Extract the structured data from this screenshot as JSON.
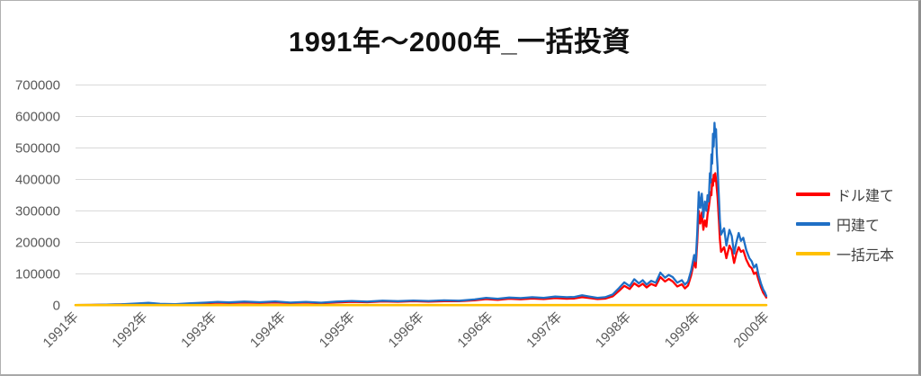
{
  "title": "1991年～2000年_一括投資",
  "chart_data": {
    "type": "line",
    "title": "1991年～2000年_一括投資",
    "xlabel": "",
    "ylabel": "",
    "xlim": [
      1991.5,
      2000.5
    ],
    "ylim": [
      0,
      700000
    ],
    "grid": "horizontal",
    "legend_position": "right",
    "yticks": [
      0,
      100000,
      200000,
      300000,
      400000,
      500000,
      600000,
      700000
    ],
    "xticks": {
      "positions": [
        1991.5,
        1992.4,
        1993.3,
        1994.2,
        1995.1,
        1996.0,
        1996.9,
        1997.8,
        1998.7,
        1999.6,
        2000.5
      ],
      "labels": [
        "1991年",
        "1992年",
        "1993年",
        "1994年",
        "1995年",
        "1996年",
        "1996年",
        "1997年",
        "1998年",
        "1999年",
        "2000年"
      ]
    },
    "x": [
      1991.5,
      1991.7,
      1991.9,
      1992.1,
      1992.3,
      1992.45,
      1992.6,
      1992.8,
      1993.0,
      1993.2,
      1993.35,
      1993.5,
      1993.7,
      1993.9,
      1994.1,
      1994.3,
      1994.5,
      1994.7,
      1994.9,
      1995.1,
      1995.3,
      1995.5,
      1995.7,
      1995.9,
      1996.1,
      1996.3,
      1996.5,
      1996.7,
      1996.85,
      1997.0,
      1997.15,
      1997.3,
      1997.45,
      1997.6,
      1997.75,
      1997.9,
      1998.0,
      1998.1,
      1998.2,
      1998.3,
      1998.4,
      1998.5,
      1998.58,
      1998.65,
      1998.72,
      1998.78,
      1998.84,
      1998.89,
      1998.94,
      1999.0,
      1999.06,
      1999.12,
      1999.18,
      1999.23,
      1999.28,
      1999.34,
      1999.4,
      1999.44,
      1999.48,
      1999.52,
      1999.56,
      1999.58,
      1999.6,
      1999.62,
      1999.64,
      1999.66,
      1999.68,
      1999.7,
      1999.72,
      1999.735,
      1999.75,
      1999.765,
      1999.775,
      1999.785,
      1999.795,
      1999.805,
      1999.815,
      1999.825,
      1999.835,
      1999.845,
      1999.855,
      1999.865,
      1999.875,
      1999.885,
      1999.895,
      1999.91,
      1999.95,
      1999.98,
      2000.02,
      2000.05,
      2000.08,
      2000.11,
      2000.14,
      2000.17,
      2000.2,
      2000.24,
      2000.28,
      2000.31,
      2000.34,
      2000.37,
      2000.4,
      2000.43,
      2000.46,
      2000.48,
      2000.5
    ],
    "series": [
      {
        "name": "ドル建て",
        "color": "#FF0000",
        "values": [
          1000,
          1400,
          2300,
          3200,
          4500,
          6000,
          4000,
          3500,
          5000,
          7000,
          8500,
          7500,
          9000,
          8000,
          9500,
          7500,
          9000,
          7000,
          9500,
          11000,
          10000,
          12500,
          11500,
          13000,
          12000,
          13500,
          13000,
          16000,
          20000,
          17500,
          21000,
          19500,
          22000,
          20000,
          23000,
          21000,
          22000,
          26000,
          23000,
          20000,
          21500,
          29000,
          46000,
          62000,
          52000,
          70000,
          60000,
          69000,
          57000,
          68000,
          62000,
          90000,
          76000,
          84000,
          76000,
          60000,
          67000,
          54000,
          63000,
          95000,
          140000,
          120000,
          200000,
          300000,
          260000,
          295000,
          240000,
          270000,
          250000,
          290000,
          310000,
          340000,
          360000,
          350000,
          400000,
          380000,
          415000,
          395000,
          420000,
          400000,
          370000,
          345000,
          300000,
          260000,
          210000,
          170000,
          185000,
          150000,
          190000,
          175000,
          135000,
          165000,
          185000,
          170000,
          175000,
          145000,
          125000,
          118000,
          100000,
          105000,
          80000,
          58000,
          40000,
          33000,
          25000
        ]
      },
      {
        "name": "円建て",
        "color": "#1F6FC5",
        "values": [
          1000,
          1500,
          2500,
          3500,
          6000,
          8000,
          5000,
          4000,
          6500,
          9000,
          11000,
          9500,
          12000,
          10000,
          12500,
          9000,
          11000,
          8500,
          12000,
          14000,
          12000,
          15000,
          13500,
          15500,
          14000,
          16000,
          15000,
          19000,
          24000,
          21000,
          25000,
          23000,
          26000,
          24000,
          28000,
          26000,
          27000,
          32000,
          28000,
          24000,
          26000,
          35000,
          55000,
          73000,
          61000,
          83000,
          70000,
          80000,
          66000,
          78000,
          72000,
          104000,
          88000,
          97000,
          90000,
          72000,
          80000,
          66000,
          76000,
          110000,
          160000,
          140000,
          230000,
          360000,
          310000,
          355000,
          280000,
          330000,
          300000,
          350000,
          330000,
          420000,
          390000,
          480000,
          450000,
          545000,
          505000,
          580000,
          535000,
          560000,
          480000,
          440000,
          380000,
          330000,
          270000,
          225000,
          245000,
          190000,
          240000,
          220000,
          165000,
          200000,
          230000,
          205000,
          215000,
          175000,
          150000,
          140000,
          120000,
          130000,
          95000,
          70000,
          50000,
          42000,
          30000
        ]
      },
      {
        "name": "一括元本",
        "color": "#FFC000",
        "constant": 1000
      }
    ]
  },
  "style": {
    "gridline_color": "#D9D9D9",
    "axis_text_color": "#595959",
    "legend_text_color": "#404040",
    "title_color": "#111111"
  }
}
